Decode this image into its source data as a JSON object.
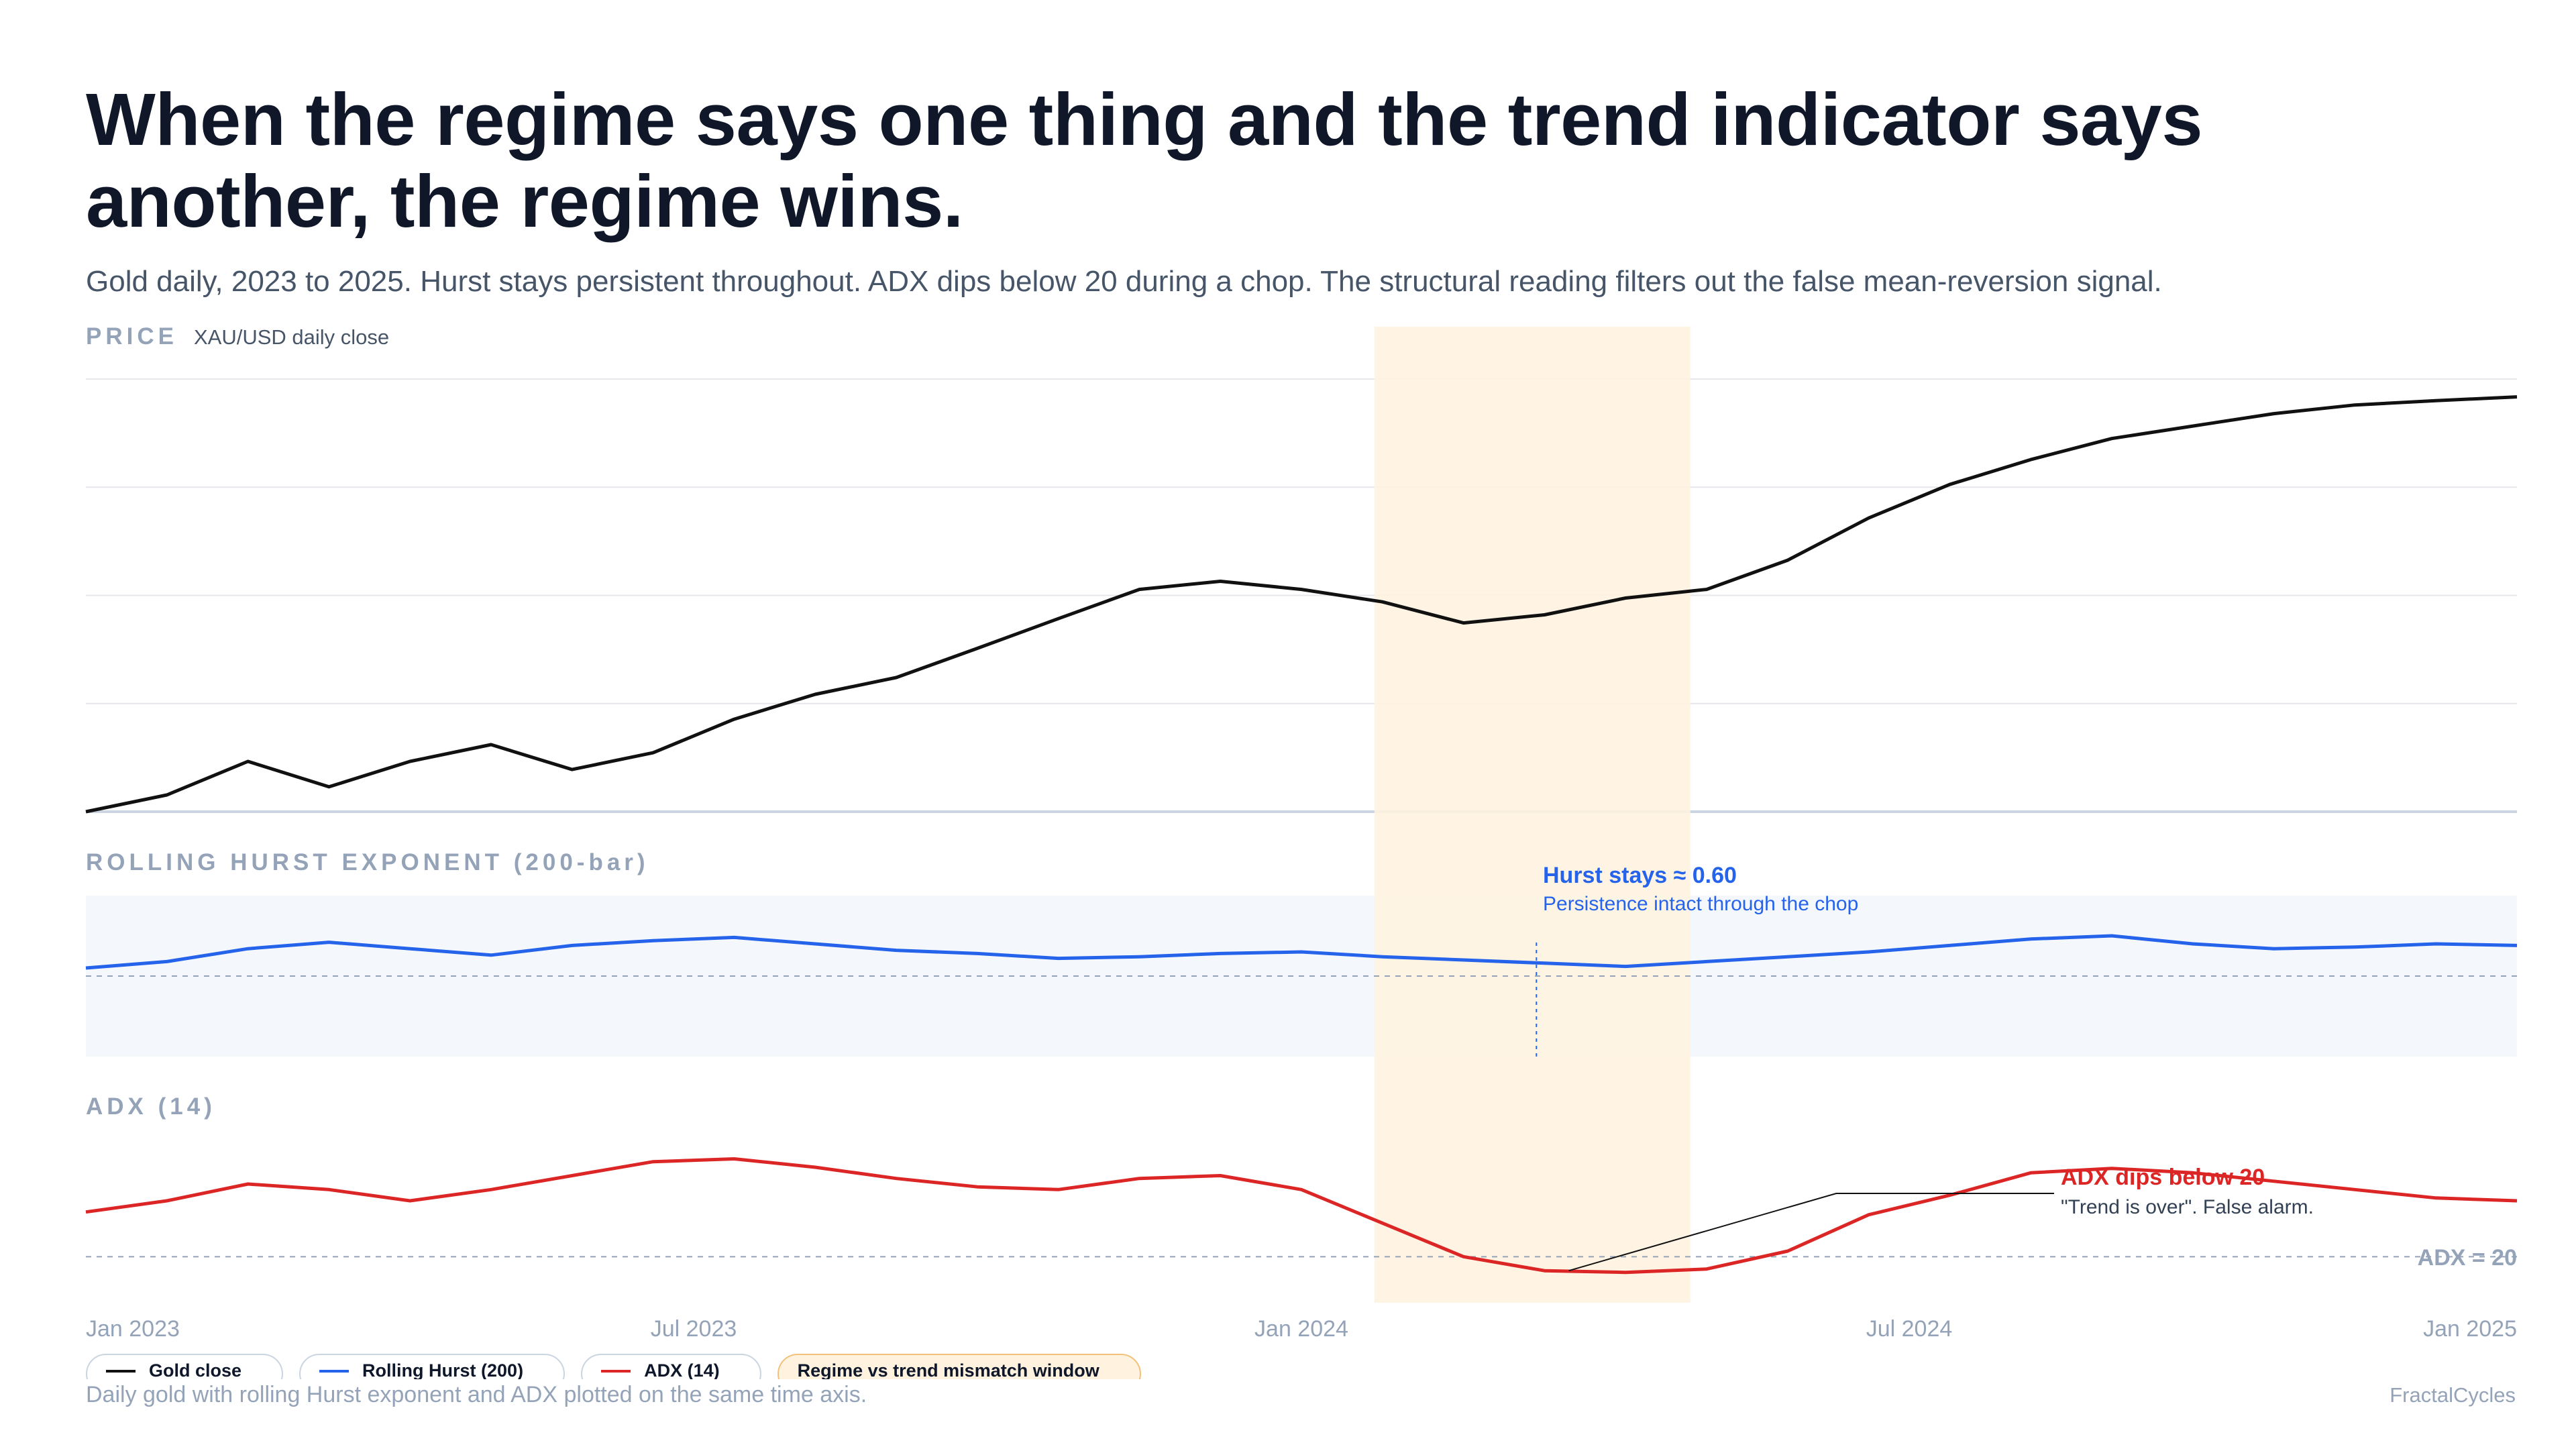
{
  "header": {
    "title": "When the regime says one thing and the trend indicator says another, the regime wins.",
    "subtitle": "Gold daily, 2023 to 2025. Hurst stays persistent throughout. ADX dips below 20 during a chop. The structural reading filters out the false mean-reversion signal."
  },
  "panels": {
    "price_label": "PRICE",
    "price_sub": "XAU/USD daily close",
    "hurst_label": "ROLLING HURST EXPONENT (200-bar)",
    "adx_label": "ADX (14)"
  },
  "annotations": {
    "hurst_title": "Hurst stays ≈ 0.60",
    "hurst_sub": "Persistence intact through the chop",
    "adx_title": "ADX dips below 20",
    "adx_sub": "\"Trend is over\". False alarm.",
    "adx_threshold": "ADX = 20"
  },
  "legend": {
    "gold": "Gold close",
    "hurst": "Rolling Hurst (200)",
    "adx": "ADX (14)",
    "window": "Regime vs trend mismatch window"
  },
  "footer": {
    "note": "Daily gold with rolling Hurst exponent and ADX plotted on the same time axis.",
    "brand": "FractalCycles"
  },
  "colors": {
    "gold": "#111111",
    "hurst": "#2563eb",
    "adx": "#dc2626",
    "window": "#fff3e0",
    "hurst_band": "#f4f8fd",
    "grid": "#e5e7eb",
    "tick": "#94a3b8"
  },
  "chart_data": [
    {
      "type": "line",
      "panel": "price",
      "x": [
        0,
        1,
        2,
        3,
        4,
        5,
        6,
        7,
        8,
        9,
        10,
        11,
        12,
        13,
        14,
        15,
        16,
        17,
        18,
        19,
        20,
        21,
        22,
        23,
        24,
        25,
        26,
        27,
        28,
        29,
        30
      ],
      "series": [
        {
          "name": "Gold close",
          "values": [
            0.0,
            0.031,
            0.093,
            0.046,
            0.093,
            0.124,
            0.078,
            0.109,
            0.171,
            0.217,
            0.248,
            0.302,
            0.357,
            0.411,
            0.426,
            0.411,
            0.388,
            0.349,
            0.364,
            0.395,
            0.411,
            0.465,
            0.543,
            0.605,
            0.651,
            0.69,
            0.713,
            0.736,
            0.752,
            0.76,
            0.767
          ]
        }
      ],
      "ylim": [
        0,
        0.8
      ]
    },
    {
      "type": "line",
      "panel": "hurst",
      "x": [
        0,
        1,
        2,
        3,
        4,
        5,
        6,
        7,
        8,
        9,
        10,
        11,
        12,
        13,
        14,
        15,
        16,
        17,
        18,
        19,
        20,
        21,
        22,
        23,
        24,
        25,
        26,
        27,
        28,
        29,
        30
      ],
      "series": [
        {
          "name": "Rolling Hurst (200)",
          "values": [
            0.605,
            0.609,
            0.617,
            0.621,
            0.617,
            0.613,
            0.619,
            0.622,
            0.624,
            0.62,
            0.616,
            0.614,
            0.611,
            0.612,
            0.614,
            0.615,
            0.612,
            0.61,
            0.608,
            0.606,
            0.609,
            0.612,
            0.615,
            0.619,
            0.623,
            0.625,
            0.62,
            0.617,
            0.618,
            0.62,
            0.619
          ]
        }
      ],
      "reference": 0.6,
      "ylim": [
        0.55,
        0.65
      ]
    },
    {
      "type": "line",
      "panel": "adx",
      "x": [
        0,
        1,
        2,
        3,
        4,
        5,
        6,
        7,
        8,
        9,
        10,
        11,
        12,
        13,
        14,
        15,
        16,
        17,
        18,
        19,
        20,
        21,
        22,
        23,
        24,
        25,
        26,
        27,
        28,
        29,
        30
      ],
      "series": [
        {
          "name": "ADX (14)",
          "values": [
            28,
            30,
            33,
            32,
            30,
            32,
            34.5,
            37,
            37.5,
            36,
            34,
            32.5,
            32,
            34,
            34.5,
            32,
            26,
            20,
            17.5,
            17.2,
            17.8,
            21,
            27.5,
            31,
            35,
            35.8,
            35,
            33.5,
            32,
            30.5,
            30
          ]
        }
      ],
      "reference": 20,
      "ylim": [
        12,
        42
      ]
    }
  ],
  "x_axis": {
    "ticks": [
      "Jan 2023",
      "Jul 2023",
      "Jan 2024",
      "Jul 2024",
      "Jan 2025"
    ],
    "tick_index": [
      0,
      7.5,
      15,
      22.5,
      30
    ]
  },
  "mismatch_window": [
    15.9,
    19.8
  ]
}
